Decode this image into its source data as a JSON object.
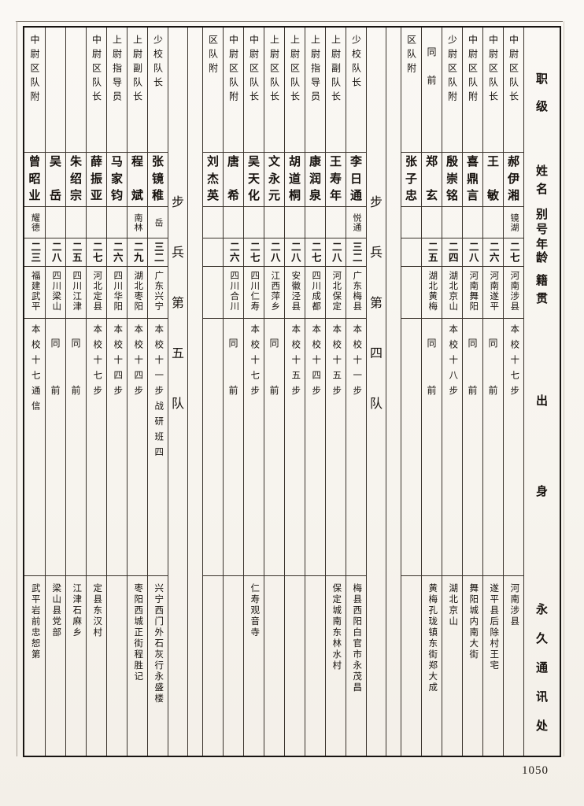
{
  "page": {
    "number": "1050"
  },
  "header": {
    "fields": [
      "职级",
      "姓名",
      "别号",
      "年龄",
      "籍贯",
      "出身",
      "永久通讯处"
    ]
  },
  "table": {
    "columns": [
      {
        "type": "entry",
        "rank": "中尉区队长",
        "name": "郝伊湘",
        "hao": "镜湖",
        "age": "二七",
        "native": "河南涉县",
        "origin": "本校十七步",
        "address": "河南涉县"
      },
      {
        "type": "entry",
        "rank": "中尉区队长",
        "name": "王敏",
        "hao": "",
        "age": "二六",
        "native": "河南遂平",
        "origin": "同前",
        "address": "遂平县后除村王宅"
      },
      {
        "type": "entry",
        "rank": "中尉区队附",
        "name": "喜鼎言",
        "hao": "",
        "age": "二八",
        "native": "河南舞阳",
        "origin": "同前",
        "address": "舞阳城内南大街"
      },
      {
        "type": "entry",
        "rank": "少尉区队附",
        "name": "殷崇铭",
        "hao": "",
        "age": "二四",
        "native": "湖北京山",
        "origin": "本校十八步",
        "address": "湖北京山"
      },
      {
        "type": "entry",
        "rank": "同前",
        "name": "郑玄",
        "hao": "",
        "age": "二五",
        "native": "湖北黄梅",
        "origin": "同前",
        "address": "黄梅孔珑镇东街郑大成"
      },
      {
        "type": "entry",
        "rank": "区队附",
        "name": "张子忠",
        "hao": "",
        "age": "",
        "native": "",
        "origin": "",
        "address": ""
      },
      {
        "type": "spacer"
      },
      {
        "type": "label",
        "label": "步兵第四队"
      },
      {
        "type": "entry",
        "rank": "少校队长",
        "name": "李日通",
        "hao": "悦通",
        "age": "三二",
        "native": "广东梅县",
        "origin": "本校十一步",
        "address": "梅县西阳白官市永茂昌"
      },
      {
        "type": "entry",
        "rank": "上尉副队长",
        "name": "王寿年",
        "hao": "",
        "age": "二八",
        "native": "河北保定",
        "origin": "本校十五步",
        "address": "保定城南东林水村"
      },
      {
        "type": "entry",
        "rank": "上尉指导员",
        "name": "康润泉",
        "hao": "",
        "age": "二七",
        "native": "四川成都",
        "origin": "本校十四步",
        "address": ""
      },
      {
        "type": "entry",
        "rank": "上尉区队长",
        "name": "胡道桐",
        "hao": "",
        "age": "二八",
        "native": "安徽泾县",
        "origin": "本校十五步",
        "address": ""
      },
      {
        "type": "entry",
        "rank": "上尉区队长",
        "name": "文永元",
        "hao": "",
        "age": "二八",
        "native": "江西萍乡",
        "origin": "同前",
        "address": ""
      },
      {
        "type": "entry",
        "rank": "中尉区队长",
        "name": "吴天化",
        "hao": "",
        "age": "二七",
        "native": "四川仁寿",
        "origin": "本校十七步",
        "address": "仁寿观音寺"
      },
      {
        "type": "entry",
        "rank": "中尉区队附",
        "name": "唐希",
        "hao": "",
        "age": "二六",
        "native": "四川合川",
        "origin": "同前",
        "address": ""
      },
      {
        "type": "entry",
        "rank": "区队附",
        "name": "刘杰英",
        "hao": "",
        "age": "",
        "native": "",
        "origin": "",
        "address": ""
      },
      {
        "type": "spacer"
      },
      {
        "type": "label",
        "label": "步兵第五队"
      },
      {
        "type": "entry",
        "rank": "少校队长",
        "name": "张镜稚",
        "hao": "岳",
        "age": "三二",
        "native": "广东兴宁",
        "origin": "本校十一步战研班四",
        "address": "兴宁西门外石灰行永盛楼"
      },
      {
        "type": "entry",
        "rank": "上尉副队长",
        "name": "程斌",
        "hao": "南林",
        "age": "二九",
        "native": "湖北枣阳",
        "origin": "本校十四步",
        "address": "枣阳西城正街程胜记"
      },
      {
        "type": "entry",
        "rank": "上尉指导员",
        "name": "马家钧",
        "hao": "",
        "age": "二六",
        "native": "四川华阳",
        "origin": "本校十四步",
        "address": ""
      },
      {
        "type": "entry",
        "rank": "中尉区队长",
        "name": "薛振亚",
        "hao": "",
        "age": "二七",
        "native": "河北定县",
        "origin": "本校十七步",
        "address": "定县东汉村"
      },
      {
        "type": "entry",
        "rank": "",
        "name": "朱绍宗",
        "hao": "",
        "age": "二五",
        "native": "四川江津",
        "origin": "同前",
        "address": "江津石麻乡"
      },
      {
        "type": "entry",
        "rank": "",
        "name": "吴岳",
        "hao": "",
        "age": "二八",
        "native": "四川梁山",
        "origin": "同前",
        "address": "梁山县党部"
      },
      {
        "type": "entry",
        "rank": "中尉区队附",
        "name": "曾昭业",
        "hao": "耀德",
        "age": "二三",
        "native": "福建武平",
        "origin": "本校十七通信",
        "address": "武平岩前忠恕第"
      }
    ]
  }
}
